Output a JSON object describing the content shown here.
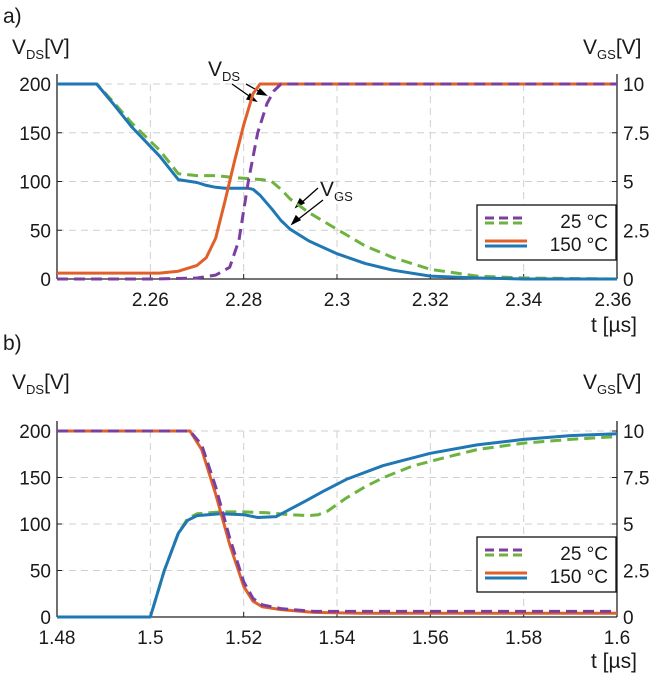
{
  "chart_data": [
    {
      "type": "line",
      "panel_label": "a)",
      "xlabel": "t [µs]",
      "ylabel_left": {
        "main": "V",
        "sub": "DS",
        "unit": "[V]"
      },
      "ylabel_right": {
        "main": "V",
        "sub": "GS",
        "unit": "[V]"
      },
      "xlim": [
        2.24,
        2.36
      ],
      "ylim_left": [
        0,
        200
      ],
      "ylim_right": [
        0,
        10
      ],
      "xticks": [
        2.26,
        2.28,
        2.3,
        2.32,
        2.34,
        2.36
      ],
      "xtick_labels": [
        "2.26",
        "2.28",
        "2.3",
        "2.32",
        "2.34",
        "2.36"
      ],
      "yticks_left": [
        "0",
        "50",
        "100",
        "150",
        "200"
      ],
      "yticks_right": [
        "0",
        "2.5",
        "5",
        "7.5",
        "10"
      ],
      "legend": [
        {
          "label": "25 °C"
        },
        {
          "label": "150 °C"
        }
      ],
      "annotations": [
        {
          "main": "V",
          "sub": "DS"
        },
        {
          "main": "V",
          "sub": "GS"
        }
      ],
      "series": [
        {
          "key": "vds25",
          "axis": "left",
          "color": "#7B3FA0",
          "dash": true,
          "x": [
            2.24,
            2.26,
            2.27,
            2.274,
            2.277,
            2.279,
            2.281,
            2.283,
            2.285,
            2.2865,
            2.288,
            2.36
          ],
          "y": [
            0,
            0,
            1,
            4,
            12,
            40,
            100,
            150,
            180,
            193,
            200,
            200
          ]
        },
        {
          "key": "vds150",
          "axis": "left",
          "color": "#E0602A",
          "dash": false,
          "x": [
            2.24,
            2.262,
            2.266,
            2.27,
            2.272,
            2.274,
            2.276,
            2.278,
            2.28,
            2.282,
            2.2835,
            2.36
          ],
          "y": [
            6,
            6,
            8,
            14,
            22,
            42,
            80,
            120,
            158,
            190,
            200,
            200
          ]
        },
        {
          "key": "vgs25",
          "axis": "right",
          "color": "#6DB33F",
          "dash": true,
          "x": [
            2.24,
            2.2485,
            2.252,
            2.256,
            2.262,
            2.266,
            2.27,
            2.274,
            2.278,
            2.284,
            2.286,
            2.288,
            2.29,
            2.294,
            2.3,
            2.306,
            2.312,
            2.32,
            2.33,
            2.34,
            2.36
          ],
          "y": [
            10,
            10,
            9.1,
            8.0,
            6.6,
            5.4,
            5.3,
            5.3,
            5.2,
            5.1,
            5.0,
            4.6,
            4.1,
            3.4,
            2.55,
            1.7,
            1.1,
            0.5,
            0.15,
            0.05,
            0
          ]
        },
        {
          "key": "vgs150",
          "axis": "right",
          "color": "#1F77B4",
          "dash": false,
          "x": [
            2.24,
            2.2485,
            2.252,
            2.256,
            2.262,
            2.266,
            2.27,
            2.272,
            2.274,
            2.276,
            2.281,
            2.282,
            2.2835,
            2.286,
            2.288,
            2.29,
            2.294,
            2.3,
            2.306,
            2.312,
            2.32,
            2.33,
            2.34,
            2.36
          ],
          "y": [
            10,
            10,
            9.0,
            7.8,
            6.3,
            5.1,
            4.95,
            4.8,
            4.7,
            4.65,
            4.65,
            4.6,
            4.3,
            3.6,
            3.0,
            2.55,
            1.95,
            1.3,
            0.8,
            0.45,
            0.15,
            0.05,
            0,
            0
          ]
        }
      ]
    },
    {
      "type": "line",
      "panel_label": "b)",
      "xlabel": "t [µs]",
      "ylabel_left": {
        "main": "V",
        "sub": "DS",
        "unit": "[V]"
      },
      "ylabel_right": {
        "main": "V",
        "sub": "GS",
        "unit": "[V]"
      },
      "xlim": [
        1.48,
        1.6
      ],
      "ylim_left": [
        0,
        200
      ],
      "ylim_right": [
        0,
        10
      ],
      "xticks": [
        1.48,
        1.5,
        1.52,
        1.54,
        1.56,
        1.58,
        1.6
      ],
      "xtick_labels": [
        "1.48",
        "1.5",
        "1.52",
        "1.54",
        "1.56",
        "1.58",
        "1.6"
      ],
      "yticks_left": [
        "0",
        "50",
        "100",
        "150",
        "200"
      ],
      "yticks_right": [
        "0",
        "2.5",
        "5",
        "7.5",
        "10"
      ],
      "legend": [
        {
          "label": "25 °C"
        },
        {
          "label": "150 °C"
        }
      ],
      "series": [
        {
          "key": "vds25",
          "axis": "left",
          "color": "#7B3FA0",
          "dash": true,
          "x": [
            1.48,
            1.5085,
            1.511,
            1.514,
            1.517,
            1.52,
            1.522,
            1.524,
            1.528,
            1.535,
            1.545,
            1.6
          ],
          "y": [
            200,
            200,
            185,
            140,
            85,
            38,
            20,
            13,
            9,
            6,
            6,
            6
          ]
        },
        {
          "key": "vds150",
          "axis": "left",
          "color": "#E0602A",
          "dash": false,
          "x": [
            1.48,
            1.5085,
            1.511,
            1.514,
            1.517,
            1.52,
            1.522,
            1.524,
            1.528,
            1.535,
            1.545,
            1.6
          ],
          "y": [
            200,
            200,
            180,
            132,
            78,
            33,
            17,
            11,
            8,
            5,
            4,
            4
          ]
        },
        {
          "key": "vgs25",
          "axis": "right",
          "color": "#6DB33F",
          "dash": true,
          "x": [
            1.48,
            1.5,
            1.503,
            1.506,
            1.508,
            1.51,
            1.515,
            1.52,
            1.525,
            1.53,
            1.534,
            1.536,
            1.538,
            1.542,
            1.546,
            1.55,
            1.556,
            1.562,
            1.57,
            1.58,
            1.59,
            1.6
          ],
          "y": [
            0,
            0,
            2.5,
            4.5,
            5.3,
            5.55,
            5.65,
            5.65,
            5.6,
            5.5,
            5.45,
            5.5,
            5.7,
            6.4,
            7.0,
            7.5,
            8.1,
            8.5,
            9.0,
            9.35,
            9.55,
            9.7
          ]
        },
        {
          "key": "vgs150",
          "axis": "right",
          "color": "#1F77B4",
          "dash": false,
          "x": [
            1.48,
            1.5,
            1.503,
            1.506,
            1.508,
            1.51,
            1.515,
            1.52,
            1.523,
            1.527,
            1.53,
            1.533,
            1.537,
            1.542,
            1.55,
            1.56,
            1.57,
            1.58,
            1.59,
            1.6
          ],
          "y": [
            0,
            0,
            2.5,
            4.5,
            5.2,
            5.45,
            5.55,
            5.5,
            5.35,
            5.4,
            5.8,
            6.2,
            6.75,
            7.4,
            8.15,
            8.8,
            9.25,
            9.55,
            9.75,
            9.85
          ]
        }
      ]
    }
  ]
}
